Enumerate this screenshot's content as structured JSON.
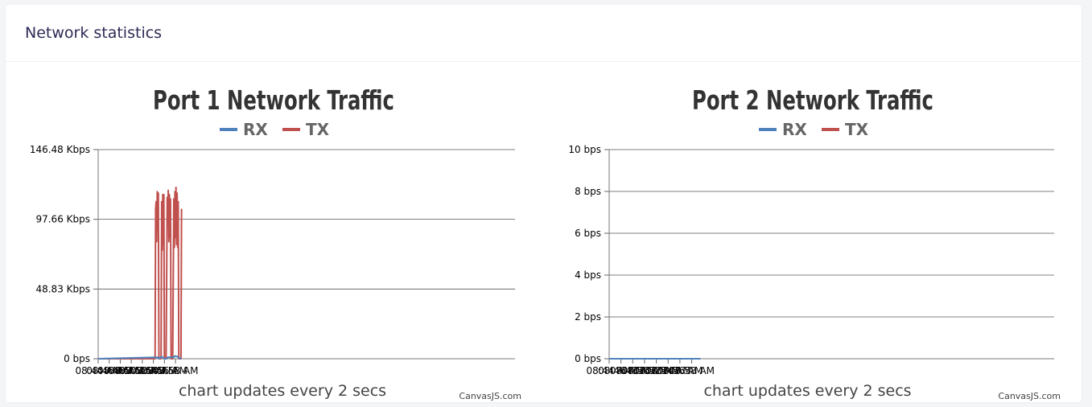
{
  "card": {
    "title": "Network statistics"
  },
  "chart_data": [
    {
      "type": "line",
      "title": "Port 1 Network Traffic",
      "subtitle": "chart updates every 2 secs",
      "credit": "CanvasJS.com",
      "legend": [
        {
          "name": "RX",
          "color": "#4f81bc"
        },
        {
          "name": "TX",
          "color": "#c0504e"
        }
      ],
      "legend_position": "top",
      "grid": true,
      "y_range": [
        0,
        146.48
      ],
      "y_ticks": [
        {
          "value": 0,
          "label": "0 bps"
        },
        {
          "value": 48.83,
          "label": "48.83 Kbps"
        },
        {
          "value": 97.66,
          "label": "97.66 Kbps"
        },
        {
          "value": 146.48,
          "label": "146.48 Kbps"
        }
      ],
      "x_range": [
        524,
        599.5
      ],
      "x_ticks": [
        {
          "value": 524,
          "label": "08:44 AM"
        },
        {
          "value": 526,
          "label": "08:46 AM"
        },
        {
          "value": 528,
          "label": "08:48 AM"
        },
        {
          "value": 530,
          "label": "08:50 AM"
        },
        {
          "value": 532,
          "label": "08:52 AM"
        },
        {
          "value": 534,
          "label": "08:54 AM"
        },
        {
          "value": 536,
          "label": "08:56 AM"
        },
        {
          "value": 538,
          "label": "08:58 AM"
        }
      ],
      "series": [
        {
          "name": "TX",
          "color": "#c0504e",
          "x": [
            524,
            534.3,
            534.4,
            534.5,
            534.6,
            534.7,
            534.8,
            534.9,
            535.0,
            535.2,
            535.4,
            535.5,
            535.6,
            535.7,
            535.8,
            535.9,
            536.0,
            536.1,
            536.3,
            536.5,
            536.6,
            536.7,
            536.8,
            536.9,
            537.0,
            537.1,
            537.2,
            537.3,
            537.5,
            537.7,
            537.8,
            537.9,
            538.0,
            538.1,
            538.2,
            538.3,
            538.4,
            538.5,
            538.6,
            538.7,
            538.9,
            539.0,
            539.1
          ],
          "values": [
            0,
            0,
            105,
            110,
            82,
            117,
            90,
            116,
            0,
            0,
            0,
            110,
            76,
            115,
            80,
            115,
            0,
            0,
            0,
            113,
            95,
            118,
            82,
            115,
            85,
            112,
            0,
            0,
            0,
            112,
            78,
            117,
            85,
            120,
            80,
            116,
            78,
            110,
            0,
            0,
            0,
            0,
            105
          ]
        },
        {
          "name": "RX",
          "color": "#4f81bc",
          "x": [
            524,
            534.4,
            534.6,
            534.8,
            535.0,
            535.5,
            535.7,
            536.0,
            536.4,
            536.6,
            537.0,
            537.2,
            537.7,
            537.9,
            538.3,
            538.5,
            538.8,
            539.0
          ],
          "values": [
            0,
            1,
            1,
            1,
            0,
            1.5,
            1,
            0,
            0,
            1,
            1,
            1,
            1,
            2,
            1.5,
            1,
            0,
            1
          ]
        }
      ]
    },
    {
      "type": "line",
      "title": "Port 2 Network Traffic",
      "subtitle": "chart updates every 2 secs",
      "credit": "CanvasJS.com",
      "legend": [
        {
          "name": "RX",
          "color": "#4f81bc"
        },
        {
          "name": "TX",
          "color": "#c0504e"
        }
      ],
      "legend_position": "top",
      "grid": true,
      "y_range": [
        0,
        10
      ],
      "y_ticks": [
        {
          "value": 0,
          "label": "0 bps"
        },
        {
          "value": 2,
          "label": "2 bps"
        },
        {
          "value": 4,
          "label": "4 bps"
        },
        {
          "value": 6,
          "label": "6 bps"
        },
        {
          "value": 8,
          "label": "8 bps"
        },
        {
          "value": 10,
          "label": "10 bps"
        }
      ],
      "x_range": [
        524,
        599.5
      ],
      "x_ticks": [
        {
          "value": 524,
          "label": "08:44 AM"
        },
        {
          "value": 526,
          "label": "08:46 AM"
        },
        {
          "value": 528,
          "label": "08:48 AM"
        },
        {
          "value": 530,
          "label": "08:50 AM"
        },
        {
          "value": 532,
          "label": "08:52 AM"
        },
        {
          "value": 534,
          "label": "08:54 AM"
        },
        {
          "value": 536,
          "label": "08:56 AM"
        },
        {
          "value": 538,
          "label": "08:58 AM"
        }
      ],
      "series": [
        {
          "name": "TX",
          "color": "#c0504e",
          "x": [
            524,
            539.5
          ],
          "values": [
            0,
            0
          ]
        },
        {
          "name": "RX",
          "color": "#4f81bc",
          "x": [
            524,
            539.5
          ],
          "values": [
            0,
            0
          ]
        }
      ]
    }
  ]
}
